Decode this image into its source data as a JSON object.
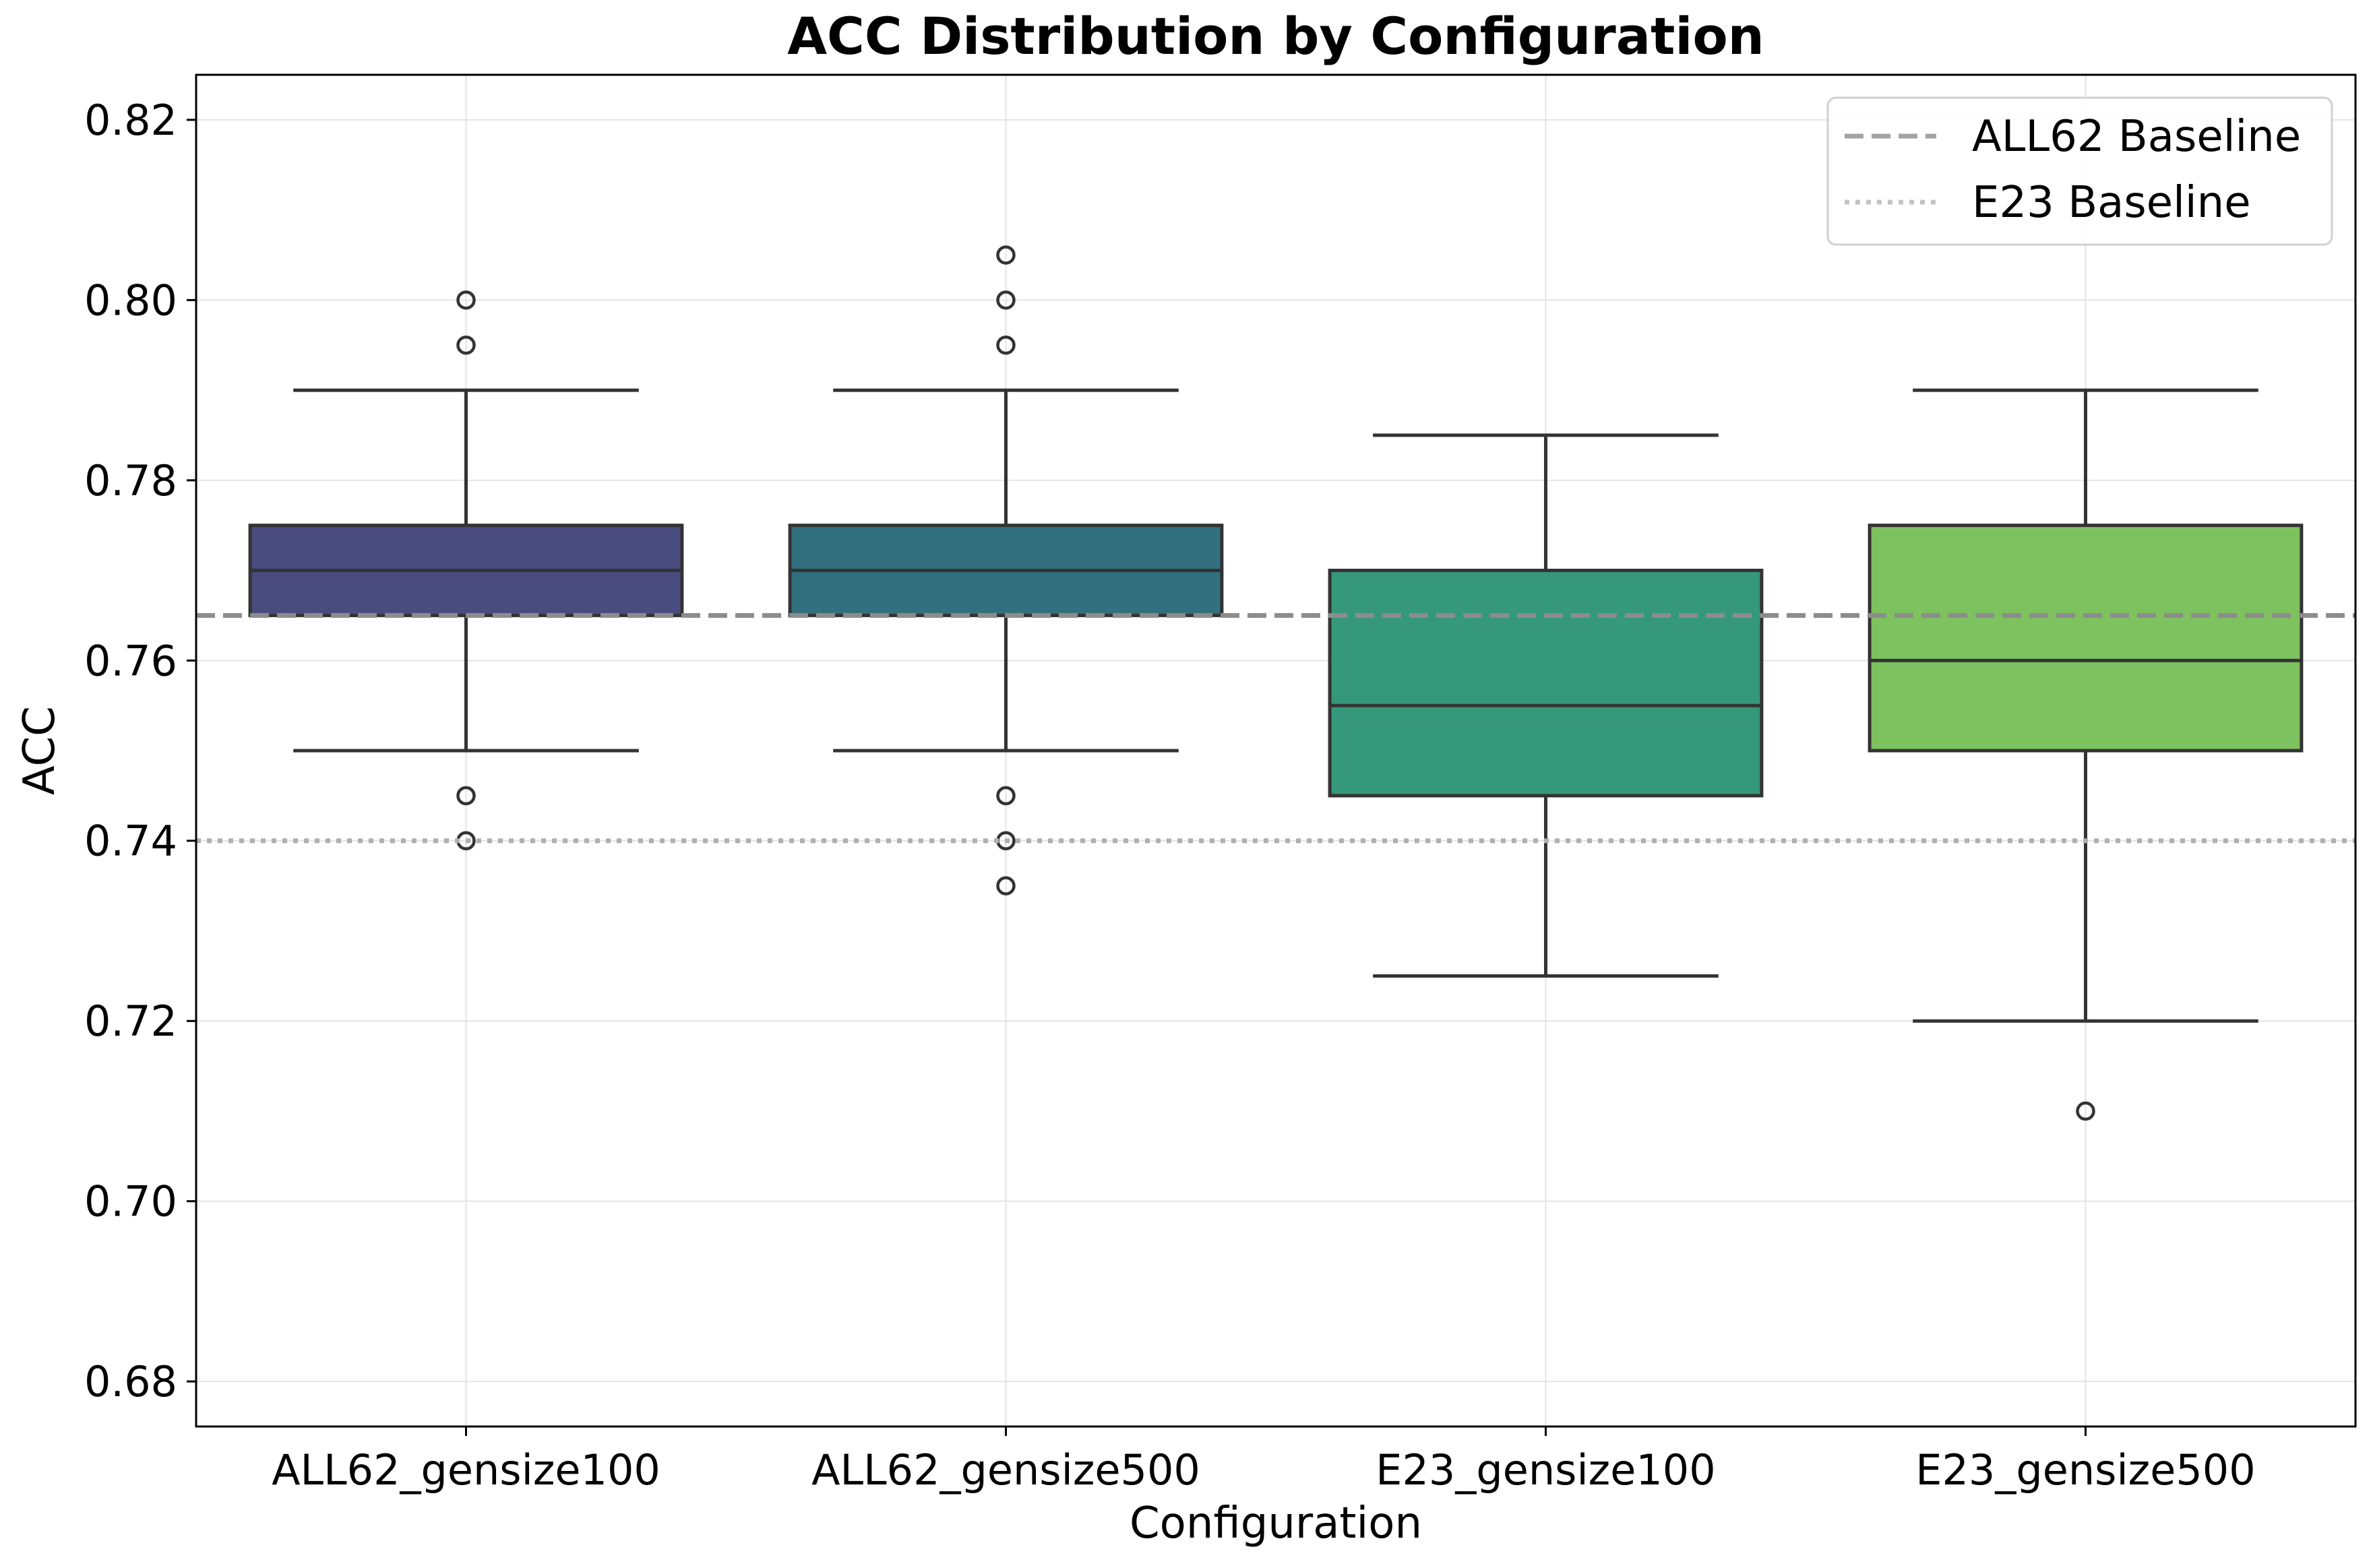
{
  "chart_data": {
    "type": "box",
    "title": "ACC Distribution by Configuration",
    "xlabel": "Configuration",
    "ylabel": "ACC",
    "ylim": [
      0.675,
      0.825
    ],
    "yticks": [
      "0.68",
      "0.70",
      "0.72",
      "0.74",
      "0.76",
      "0.78",
      "0.80",
      "0.82"
    ],
    "grid": true,
    "legend_position": "top-right",
    "categories": [
      "ALL62_gensize100",
      "ALL62_gensize500",
      "E23_gensize100",
      "E23_gensize500"
    ],
    "boxes": [
      {
        "name": "ALL62_gensize100",
        "color": "#4a4b7f",
        "whisker_low": 0.75,
        "q1": 0.765,
        "median": 0.77,
        "q3": 0.775,
        "whisker_high": 0.79,
        "outliers": [
          0.8,
          0.795,
          0.745,
          0.74
        ]
      },
      {
        "name": "ALL62_gensize500",
        "color": "#33707f",
        "whisker_low": 0.75,
        "q1": 0.765,
        "median": 0.77,
        "q3": 0.775,
        "whisker_high": 0.79,
        "outliers": [
          0.805,
          0.8,
          0.795,
          0.745,
          0.74,
          0.735
        ]
      },
      {
        "name": "E23_gensize100",
        "color": "#35987b",
        "whisker_low": 0.725,
        "q1": 0.745,
        "median": 0.755,
        "q3": 0.77,
        "whisker_high": 0.785,
        "outliers": []
      },
      {
        "name": "E23_gensize500",
        "color": "#7dc25f",
        "whisker_low": 0.72,
        "q1": 0.75,
        "median": 0.76,
        "q3": 0.775,
        "whisker_high": 0.79,
        "outliers": [
          0.71
        ]
      }
    ],
    "baselines": [
      {
        "name": "ALL62 Baseline",
        "value": 0.765,
        "style": "dashed",
        "color": "#8c8c8c"
      },
      {
        "name": "E23 Baseline",
        "value": 0.74,
        "style": "dotted",
        "color": "#b0b0b0"
      }
    ]
  }
}
